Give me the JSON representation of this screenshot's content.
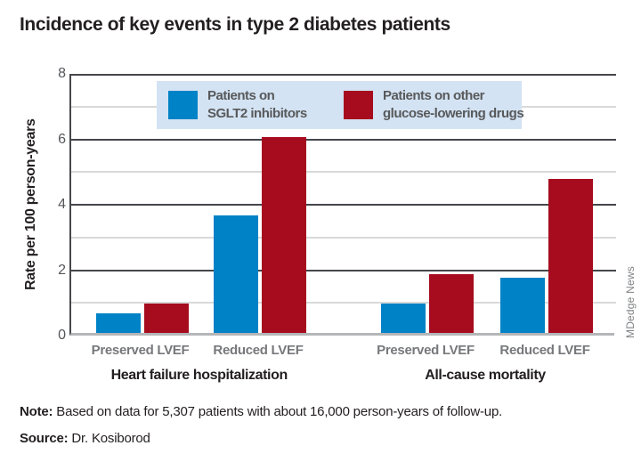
{
  "title": "Incidence of key events in type 2 diabetes patients",
  "chart_data": {
    "type": "bar",
    "title": "Incidence of key events in type 2 diabetes patients",
    "xlabel": "",
    "ylabel": "Rate per 100 person-years",
    "ylim": [
      0,
      8
    ],
    "yticks": [
      0,
      2,
      4,
      6,
      8
    ],
    "grid": "horizontal, dark lines at even values, light lines at odd values",
    "legend_position": "top-center inside plot",
    "categories": [
      "Preserved LVEF",
      "Reduced LVEF",
      "Preserved LVEF",
      "Reduced LVEF"
    ],
    "group_sections": [
      {
        "label": "Heart failure hospitalization",
        "category_indexes": [
          0,
          1
        ]
      },
      {
        "label": "All-cause mortality",
        "category_indexes": [
          2,
          3
        ]
      }
    ],
    "series": [
      {
        "name": "Patients on SGLT2 inhibitors",
        "color": "#0082c6",
        "values": [
          0.6,
          3.6,
          0.9,
          1.7
        ]
      },
      {
        "name": "Patients on other glucose-lowering drugs",
        "color": "#a60c1e",
        "values": [
          0.9,
          6.0,
          1.8,
          4.7
        ]
      }
    ]
  },
  "legend": {
    "items": [
      {
        "color": "#0082c6",
        "lines": [
          "Patients on",
          "SGLT2 inhibitors"
        ]
      },
      {
        "color": "#a60c1e",
        "lines": [
          "Patients on other",
          "glucose-lowering drugs"
        ]
      }
    ]
  },
  "footer": {
    "note_label": "Note:",
    "note_text": " Based on data for 5,307 patients with about 16,000 person-years of follow-up.",
    "source_label": "Source:",
    "source_text": " Dr. Kosiborod"
  },
  "watermark": "MDedge News",
  "colors": {
    "sglt2_blue": "#0082c6",
    "other_red": "#a60c1e",
    "legend_bg": "#d3e3f3",
    "dark_grid": "#46474b",
    "light_grid": "#d9d9d9",
    "bottom_axis": "#b4b6b8",
    "tick_text": "#55565a",
    "xtick_text": "#77787b"
  }
}
